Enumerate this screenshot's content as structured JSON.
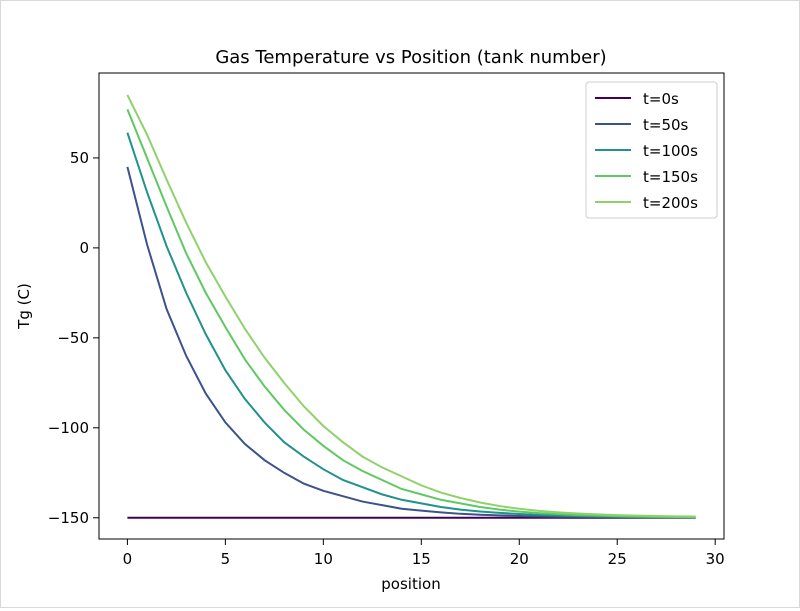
{
  "chart_data": {
    "type": "line",
    "title": "Gas Temperature vs Position (tank number)",
    "xlabel": "position",
    "ylabel": "Tg (C)",
    "xlim": [
      -1.45,
      30.45
    ],
    "ylim": [
      -161.8,
      97.2
    ],
    "xticks": [
      0,
      5,
      10,
      15,
      20,
      25,
      30
    ],
    "yticks": [
      -150,
      -100,
      -50,
      0,
      50
    ],
    "ytick_labels": [
      "−150",
      "−100",
      "−50",
      "0",
      "50"
    ],
    "grid": false,
    "legend_position": "upper right",
    "x": [
      0,
      1,
      2,
      3,
      4,
      5,
      6,
      7,
      8,
      9,
      10,
      11,
      12,
      13,
      14,
      15,
      16,
      17,
      18,
      19,
      20,
      21,
      22,
      23,
      24,
      25,
      26,
      27,
      28,
      29
    ],
    "series": [
      {
        "name": "t=0s",
        "color": "#440154",
        "values": [
          -150,
          -150,
          -150,
          -150,
          -150,
          -150,
          -150,
          -150,
          -150,
          -150,
          -150,
          -150,
          -150,
          -150,
          -150,
          -150,
          -150,
          -150,
          -150,
          -150,
          -150,
          -150,
          -150,
          -150,
          -150,
          -150,
          -150,
          -150,
          -150,
          -150
        ]
      },
      {
        "name": "t=50s",
        "color": "#3b528b",
        "values": [
          45,
          2,
          -34,
          -60,
          -81,
          -97,
          -109,
          -118,
          -125,
          -131,
          -135,
          -138,
          -141,
          -143,
          -145,
          -146,
          -147,
          -147.8,
          -148.3,
          -148.7,
          -149,
          -149.2,
          -149.4,
          -149.5,
          -149.6,
          -149.7,
          -149.75,
          -149.8,
          -149.85,
          -149.9
        ]
      },
      {
        "name": "t=100s",
        "color": "#21918c",
        "values": [
          64,
          31,
          1,
          -25,
          -48,
          -68,
          -84,
          -97,
          -108,
          -116,
          -123,
          -129,
          -133,
          -137,
          -140,
          -142,
          -144,
          -145.5,
          -146.5,
          -147.3,
          -147.9,
          -148.4,
          -148.8,
          -149.1,
          -149.3,
          -149.5,
          -149.6,
          -149.7,
          -149.8,
          -149.85
        ]
      },
      {
        "name": "t=150s",
        "color": "#5ec962",
        "values": [
          77,
          50,
          23,
          -3,
          -25,
          -44,
          -62,
          -77,
          -90,
          -101,
          -110,
          -118,
          -124,
          -129,
          -134,
          -137,
          -140,
          -142,
          -144,
          -145.5,
          -146.6,
          -147.4,
          -148,
          -148.5,
          -148.8,
          -149.1,
          -149.3,
          -149.5,
          -149.6,
          -149.7
        ]
      },
      {
        "name": "t=200s",
        "color": "#8fd16b",
        "values": [
          85,
          63,
          38,
          14,
          -8,
          -27,
          -45,
          -61,
          -75,
          -88,
          -99,
          -108,
          -116,
          -122,
          -127,
          -132,
          -136,
          -139,
          -141.5,
          -143.5,
          -145,
          -146.2,
          -147,
          -147.6,
          -148.1,
          -148.5,
          -148.8,
          -149,
          -149.2,
          -149.3
        ]
      }
    ]
  }
}
